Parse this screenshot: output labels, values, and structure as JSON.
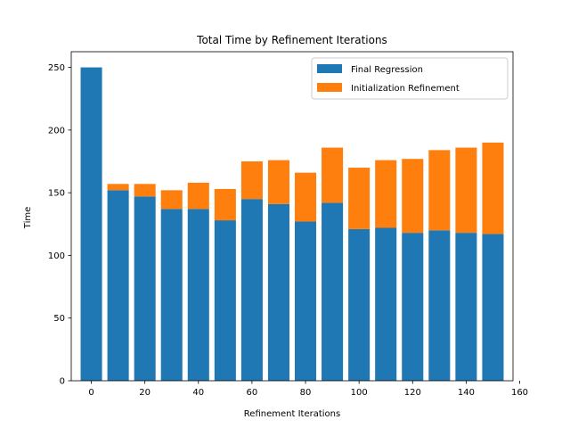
{
  "chart_data": {
    "type": "bar",
    "stacked": true,
    "title": "Total Time by Refinement Iterations",
    "xlabel": "Refinement Iterations",
    "ylabel": "Time",
    "x": [
      0,
      10,
      20,
      30,
      40,
      50,
      60,
      70,
      80,
      90,
      100,
      110,
      120,
      130,
      140,
      150
    ],
    "xlim": [
      -7.5,
      157.5
    ],
    "ylim": [
      0,
      262.5
    ],
    "xticks": [
      0,
      20,
      40,
      60,
      80,
      100,
      120,
      140,
      160
    ],
    "yticks": [
      0,
      50,
      100,
      150,
      200,
      250
    ],
    "bar_width": 8,
    "grid": false,
    "legend_position": "upper-right",
    "series": [
      {
        "name": "Final Regression",
        "color": "#1f77b4",
        "values": [
          250,
          152,
          147,
          137,
          137,
          128,
          145,
          141,
          127,
          142,
          121,
          122,
          118,
          120,
          118,
          117
        ]
      },
      {
        "name": "Initialization Refinement",
        "color": "#ff7f0e",
        "values": [
          0,
          5,
          10,
          15,
          21,
          25,
          30,
          35,
          39,
          44,
          49,
          54,
          59,
          64,
          68,
          73
        ]
      }
    ]
  }
}
